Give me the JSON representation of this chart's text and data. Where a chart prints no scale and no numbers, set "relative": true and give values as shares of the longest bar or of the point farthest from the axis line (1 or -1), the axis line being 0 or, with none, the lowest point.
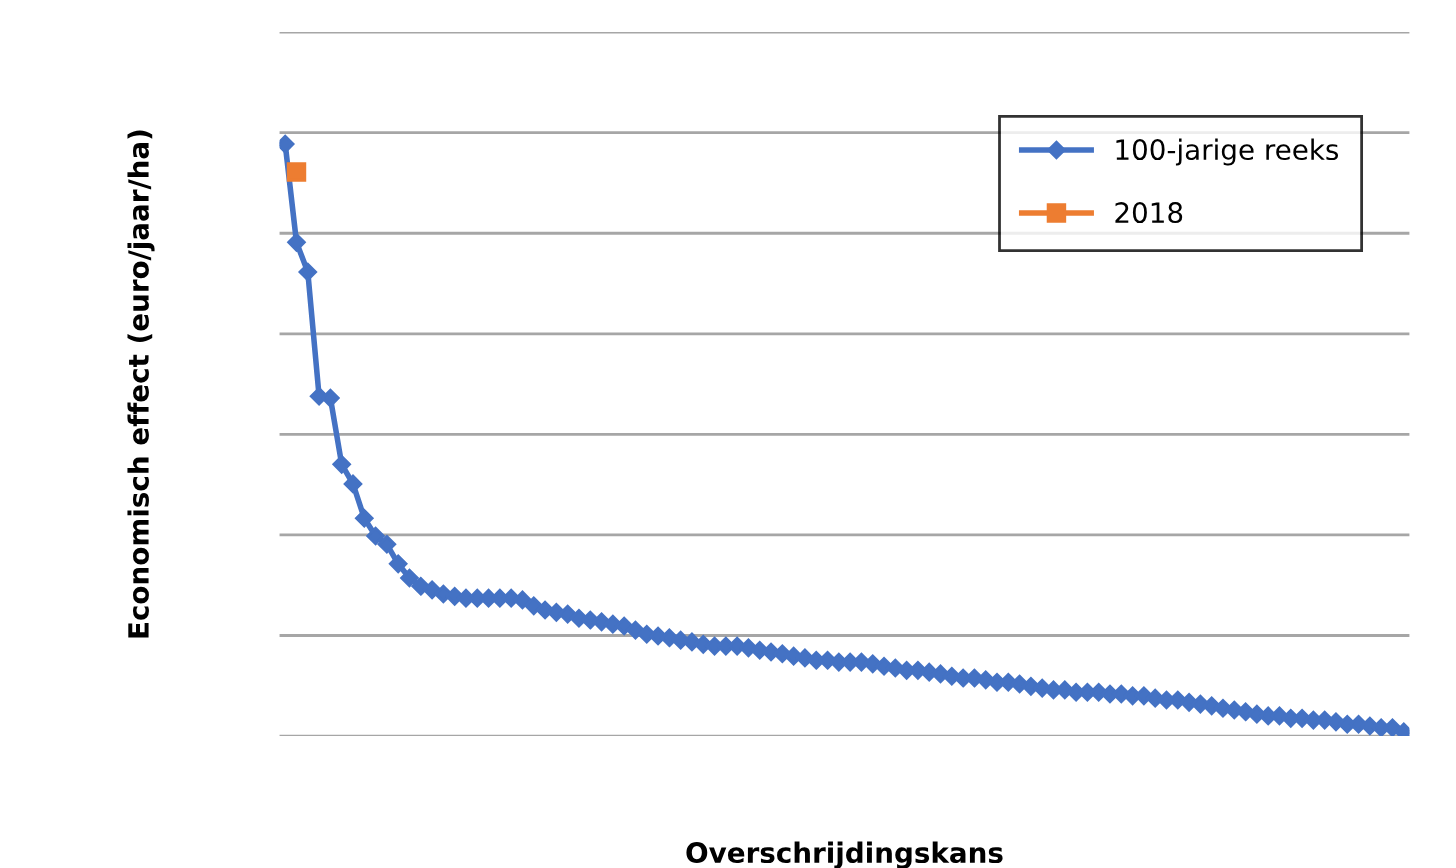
{
  "chart_data": {
    "type": "line",
    "relative": true,
    "xlabel": "Overschrijdingskans",
    "ylabel": "Economisch effect (euro/jaar/ha)",
    "categories": [
      null,
      null,
      null,
      null,
      null,
      null,
      null,
      null,
      null,
      null,
      null,
      null,
      null,
      null,
      null,
      null,
      null,
      null,
      null,
      null,
      null,
      null,
      null,
      null,
      null,
      null,
      null,
      null,
      null,
      null,
      null,
      null,
      null,
      null,
      null,
      null,
      null,
      null,
      null,
      null,
      null,
      null,
      null,
      null,
      null,
      null,
      null,
      null,
      null,
      null,
      null,
      null,
      null,
      null,
      null,
      null,
      null,
      null,
      null,
      null,
      null,
      null,
      null,
      null,
      null,
      null,
      null,
      null,
      null,
      null,
      null,
      null,
      null,
      null,
      null,
      null,
      null,
      null,
      null,
      null,
      null,
      null,
      null,
      null,
      null,
      null,
      null,
      null,
      null,
      null,
      null,
      null,
      null,
      null,
      null,
      null,
      null,
      null,
      null,
      null
    ],
    "grid": "y",
    "legend": "top right",
    "tick_labels": false,
    "series": [
      {
        "name": "100-jarige reeks",
        "color": "#4472c4",
        "marker": "diamond",
        "values": [
          1.0,
          0.834,
          0.784,
          0.574,
          0.571,
          0.459,
          0.426,
          0.368,
          0.338,
          0.324,
          0.291,
          0.267,
          0.253,
          0.247,
          0.24,
          0.236,
          0.233,
          0.233,
          0.233,
          0.233,
          0.233,
          0.23,
          0.22,
          0.213,
          0.209,
          0.206,
          0.199,
          0.196,
          0.193,
          0.189,
          0.186,
          0.179,
          0.172,
          0.169,
          0.166,
          0.162,
          0.159,
          0.155,
          0.152,
          0.152,
          0.152,
          0.149,
          0.145,
          0.142,
          0.139,
          0.135,
          0.132,
          0.128,
          0.128,
          0.125,
          0.125,
          0.125,
          0.122,
          0.118,
          0.115,
          0.111,
          0.111,
          0.108,
          0.105,
          0.101,
          0.098,
          0.098,
          0.095,
          0.091,
          0.091,
          0.088,
          0.084,
          0.081,
          0.078,
          0.078,
          0.074,
          0.074,
          0.074,
          0.071,
          0.071,
          0.068,
          0.068,
          0.064,
          0.061,
          0.061,
          0.057,
          0.054,
          0.051,
          0.047,
          0.044,
          0.041,
          0.037,
          0.034,
          0.034,
          0.03,
          0.03,
          0.027,
          0.027,
          0.024,
          0.02,
          0.02,
          0.017,
          0.014,
          0.014,
          0.007
        ]
      },
      {
        "name": "2018",
        "color": "#ed7d31",
        "marker": "square",
        "values": [
          null,
          0.953,
          null,
          null,
          null,
          null,
          null,
          null,
          null,
          null,
          null,
          null,
          null,
          null,
          null,
          null,
          null,
          null,
          null,
          null,
          null,
          null,
          null,
          null,
          null,
          null,
          null,
          null,
          null,
          null,
          null,
          null,
          null,
          null,
          null,
          null,
          null,
          null,
          null,
          null,
          null,
          null,
          null,
          null,
          null,
          null,
          null,
          null,
          null,
          null,
          null,
          null,
          null,
          null,
          null,
          null,
          null,
          null,
          null,
          null,
          null,
          null,
          null,
          null,
          null,
          null,
          null,
          null,
          null,
          null,
          null,
          null,
          null,
          null,
          null,
          null,
          null,
          null,
          null,
          null,
          null,
          null,
          null,
          null,
          null,
          null,
          null,
          null,
          null,
          null,
          null,
          null,
          null,
          null,
          null,
          null,
          null,
          null,
          null,
          null
        ]
      }
    ]
  }
}
